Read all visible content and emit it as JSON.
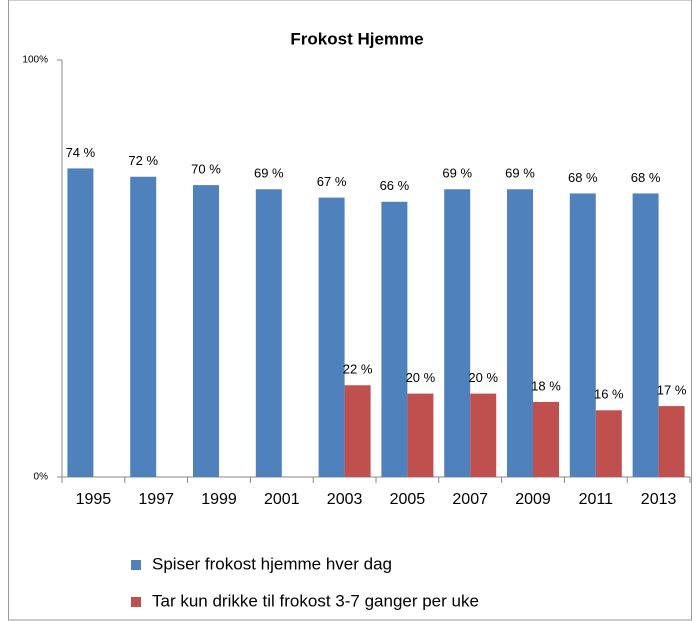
{
  "chart_data": {
    "type": "bar",
    "title": "Frokost Hjemme",
    "categories": [
      "1995",
      "1997",
      "1999",
      "2001",
      "2003",
      "2005",
      "2007",
      "2009",
      "2011",
      "2013"
    ],
    "series": [
      {
        "name": "Spiser frokost hjemme hver dag",
        "color": "#4f81bd",
        "values": [
          74,
          72,
          70,
          69,
          67,
          66,
          69,
          69,
          68,
          68
        ],
        "value_labels": [
          "74 %",
          "72 %",
          "70 %",
          "69 %",
          "67 %",
          "66 %",
          "69 %",
          "69 %",
          "68 %",
          "68 %"
        ]
      },
      {
        "name": "Tar kun drikke til frokost 3-7 ganger per uke",
        "color": "#c0504d",
        "values": [
          null,
          null,
          null,
          null,
          22,
          20,
          20,
          18,
          16,
          17
        ],
        "value_labels": [
          null,
          null,
          null,
          null,
          "22 %",
          "20 %",
          "20 %",
          "18 %",
          "16 %",
          "17 %"
        ]
      }
    ],
    "ylim": [
      0,
      100
    ],
    "yticks": [
      {
        "value": 0,
        "label": "0%"
      },
      {
        "value": 100,
        "label": "100%"
      }
    ],
    "legend": "bottom"
  }
}
